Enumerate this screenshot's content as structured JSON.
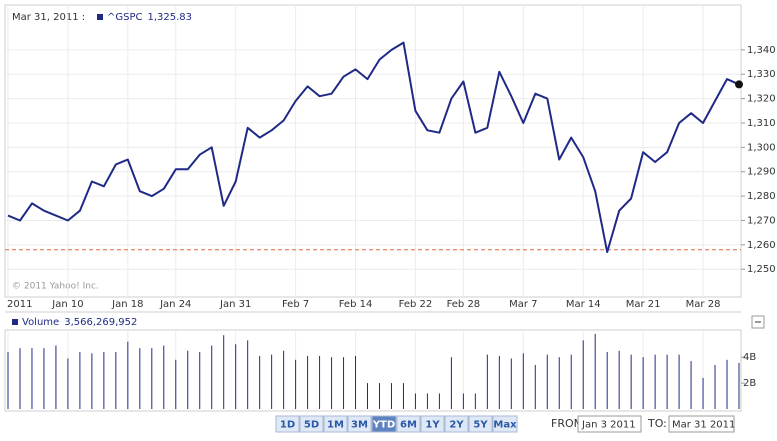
{
  "header": {
    "date": "Mar 31, 2011 :"
  },
  "copyright": "© 2011 Yahoo! Inc.",
  "chart_data": [
    {
      "type": "line",
      "categories": [
        "2011",
        null,
        null,
        null,
        null,
        "Jan 10",
        null,
        null,
        null,
        null,
        "Jan 18",
        null,
        null,
        null,
        "Jan 24",
        null,
        null,
        null,
        null,
        "Jan 31",
        null,
        null,
        null,
        null,
        "Feb 7",
        null,
        null,
        null,
        null,
        "Feb 14",
        null,
        null,
        null,
        null,
        "Feb 22",
        null,
        null,
        null,
        "Feb 28",
        null,
        null,
        null,
        null,
        "Mar 7",
        null,
        null,
        null,
        null,
        "Mar 14",
        null,
        null,
        null,
        null,
        "Mar 21",
        null,
        null,
        null,
        null,
        "Mar 28",
        null,
        null,
        null
      ],
      "series": [
        {
          "name": "^GSPC",
          "color": "#1f2a87",
          "values": [
            1272,
            1270,
            1277,
            1274,
            1272,
            1270,
            1274,
            1286,
            1284,
            1293,
            1295,
            1282,
            1280,
            1283,
            1291,
            1291,
            1297,
            1300,
            1276,
            1286,
            1308,
            1304,
            1307,
            1311,
            1319,
            1325,
            1321,
            1322,
            1329,
            1332,
            1328,
            1336,
            1340,
            1343,
            1315,
            1307,
            1306,
            1320,
            1327,
            1306,
            1308,
            1331,
            1321,
            1310,
            1322,
            1320,
            1295,
            1304,
            1296,
            1282,
            1257,
            1274,
            1279,
            1298,
            1294,
            1298,
            1310,
            1314,
            1310,
            1319,
            1328,
            1325.83
          ],
          "value_labels": [
            null,
            null,
            null,
            null,
            null,
            null,
            null,
            null,
            null,
            null,
            null,
            null,
            null,
            null,
            null,
            null,
            null,
            null,
            null,
            null,
            null,
            null,
            null,
            null,
            null,
            null,
            null,
            null,
            null,
            null,
            null,
            null,
            null,
            null,
            null,
            null,
            null,
            null,
            null,
            null,
            null,
            null,
            null,
            null,
            null,
            null,
            null,
            null,
            null,
            null,
            null,
            null,
            null,
            null,
            null,
            null,
            null,
            null,
            null,
            null,
            null,
            "1,325.83"
          ]
        }
      ],
      "ylim": [
        1239,
        1358
      ],
      "yticks": [
        {
          "value": 1250,
          "label": "1,250"
        },
        {
          "value": 1260,
          "label": "1,260"
        },
        {
          "value": 1270,
          "label": "1,270"
        },
        {
          "value": 1280,
          "label": "1,280"
        },
        {
          "value": 1290,
          "label": "1,290"
        },
        {
          "value": 1300,
          "label": "1,300"
        },
        {
          "value": 1310,
          "label": "1,310"
        },
        {
          "value": 1320,
          "label": "1,320"
        },
        {
          "value": 1330,
          "label": "1,330"
        },
        {
          "value": 1340,
          "label": "1,340"
        }
      ],
      "grid": true,
      "reference_line": 1258,
      "reference_color": "#e06a3a"
    },
    {
      "type": "bar",
      "series": [
        {
          "name": "Volume",
          "color": "#1f2a87",
          "values": [
            4400000000,
            4700000000,
            4700000000,
            4700000000,
            4900000000,
            3900000000,
            4400000000,
            4300000000,
            4400000000,
            4400000000,
            5200000000,
            4700000000,
            4700000000,
            4900000000,
            3800000000,
            4500000000,
            4400000000,
            4900000000,
            5700000000,
            5000000000,
            5300000000,
            4100000000,
            4200000000,
            4500000000,
            3800000000,
            4100000000,
            4100000000,
            4000000000,
            4000000000,
            4100000000,
            2000000000,
            2000000000,
            2000000000,
            2000000000,
            1200000000,
            1200000000,
            1200000000,
            4000000000,
            1200000000,
            1200000000,
            4200000000,
            4100000000,
            3900000000,
            4300000000,
            3400000000,
            4200000000,
            4000000000,
            4200000000,
            5300000000,
            5800000000,
            4400000000,
            4500000000,
            4200000000,
            4000000000,
            4200000000,
            4200000000,
            4200000000,
            3700000000,
            2400000000,
            3400000000,
            3800000000,
            3566269952
          ],
          "value_labels": [
            null,
            null,
            null,
            null,
            null,
            null,
            null,
            null,
            null,
            null,
            null,
            null,
            null,
            null,
            null,
            null,
            null,
            null,
            null,
            null,
            null,
            null,
            null,
            null,
            null,
            null,
            null,
            null,
            null,
            null,
            null,
            null,
            null,
            null,
            null,
            null,
            null,
            null,
            null,
            null,
            null,
            null,
            null,
            null,
            null,
            null,
            null,
            null,
            null,
            null,
            null,
            null,
            null,
            null,
            null,
            null,
            null,
            null,
            null,
            null,
            null,
            "3,566,269,952"
          ]
        }
      ],
      "ylim": [
        0,
        6100000000
      ],
      "yticks": [
        {
          "value": 2000000000,
          "label": "2B"
        },
        {
          "value": 4000000000,
          "label": "4B"
        }
      ]
    }
  ],
  "controls": {
    "ranges": [
      "1D",
      "5D",
      "1M",
      "3M",
      "YTD",
      "6M",
      "1Y",
      "2Y",
      "5Y",
      "Max"
    ],
    "selected": 4,
    "from_label": "FROM:",
    "from": "Jan 3 2011",
    "to_label": "TO:",
    "to": "Mar 31 2011"
  }
}
